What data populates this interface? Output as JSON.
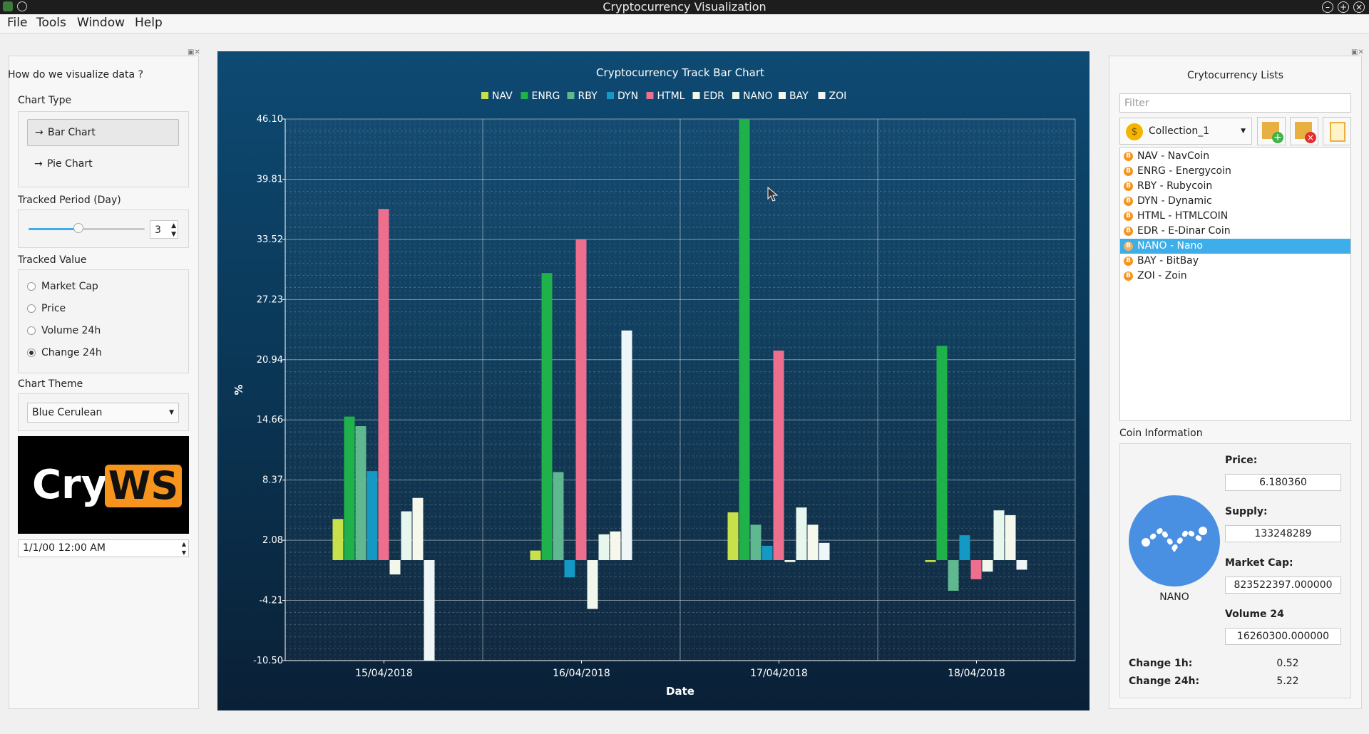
{
  "window": {
    "title": "Cryptocurrency Visualization"
  },
  "menu": [
    "File",
    "Tools",
    "Window",
    "Help"
  ],
  "left": {
    "heading": "How do we visualize data ?",
    "chart_type_label": "Chart Type",
    "bar_chart": "Bar Chart",
    "pie_chart": "Pie Chart",
    "period_label": "Tracked Period (Day)",
    "period_value": "3",
    "period_fraction": 0.43,
    "value_label": "Tracked Value",
    "values": [
      "Market Cap",
      "Price",
      "Volume 24h",
      "Change 24h"
    ],
    "selected_value": "Change 24h",
    "theme_label": "Chart Theme",
    "theme_value": "Blue Cerulean",
    "logo_left": "Cry",
    "logo_right": "WS",
    "datetime": "1/1/00 12:00 AM"
  },
  "right": {
    "heading": "Crytocurrency Lists",
    "filter_placeholder": "Filter",
    "collection": "Collection_1",
    "coins": [
      "NAV - NavCoin",
      "ENRG - Energycoin",
      "RBY - Rubycoin",
      "DYN - Dynamic",
      "HTML - HTMLCOIN",
      "EDR - E-Dinar Coin",
      "NANO - Nano",
      "BAY - BitBay",
      "ZOI - Zoin"
    ],
    "selected_coin": "NANO - Nano",
    "info_heading": "Coin Information",
    "coin_name": "NANO",
    "price_label": "Price:",
    "price": "6.180360",
    "supply_label": "Supply:",
    "supply": "133248289",
    "marketcap_label": "Market Cap:",
    "marketcap": "823522397.000000",
    "volume_label": "Volume 24",
    "volume": "16260300.000000",
    "change1h_label": "Change 1h:",
    "change1h": "0.52",
    "change24h_label": "Change 24h:",
    "change24h": "5.22"
  },
  "colors": {
    "NAV": "#c8e04a",
    "ENRG": "#1fb24a",
    "RBY": "#5fb88f",
    "DYN": "#1499c4",
    "HTML": "#ee6e8e",
    "EDR": "#f2f7ec",
    "NANO": "#e7f7ee",
    "BAY": "#f6f8ec",
    "ZOI": "#eef6f7"
  },
  "chart_data": {
    "type": "bar",
    "title": "Cryptocurrency Track Bar Chart",
    "xlabel": "Date",
    "ylabel": "%",
    "categories": [
      "15/04/2018",
      "16/04/2018",
      "17/04/2018",
      "18/04/2018"
    ],
    "ylim": [
      -10.5,
      46.1
    ],
    "yticks": [
      "46.10",
      "39.81",
      "33.52",
      "27.23",
      "20.94",
      "14.66",
      "8.37",
      "2.08",
      "-4.21",
      "-10.50"
    ],
    "legend": "top",
    "grid": true,
    "series": [
      {
        "name": "NAV",
        "values": [
          4.3,
          1.0,
          5.0,
          -0.2
        ]
      },
      {
        "name": "ENRG",
        "values": [
          15.0,
          30.0,
          46.1,
          22.4
        ]
      },
      {
        "name": "RBY",
        "values": [
          14.0,
          9.2,
          3.7,
          -3.2
        ]
      },
      {
        "name": "DYN",
        "values": [
          9.3,
          -1.8,
          1.5,
          2.6
        ]
      },
      {
        "name": "HTML",
        "values": [
          36.7,
          33.5,
          21.9,
          -2.0
        ]
      },
      {
        "name": "EDR",
        "values": [
          -1.5,
          -5.1,
          -0.2,
          -1.2
        ]
      },
      {
        "name": "NANO",
        "values": [
          5.1,
          2.7,
          5.5,
          5.2
        ]
      },
      {
        "name": "BAY",
        "values": [
          6.5,
          3.0,
          3.7,
          4.7
        ]
      },
      {
        "name": "ZOI",
        "values": [
          -10.5,
          24.0,
          1.8,
          -1.0
        ]
      }
    ]
  }
}
